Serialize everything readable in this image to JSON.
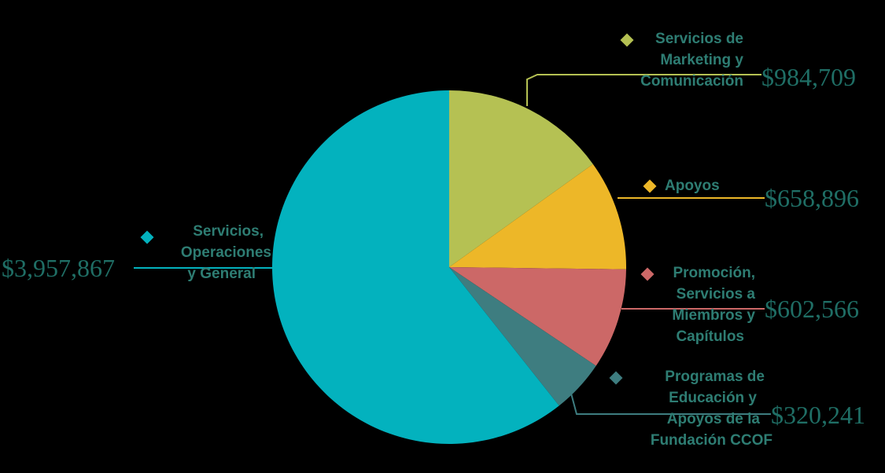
{
  "chart_data": {
    "type": "pie",
    "start_angle_deg": 0,
    "direction": "clockwise",
    "slices": [
      {
        "label_lines": [
          "Servicios de",
          "Marketing y",
          "Comunicación"
        ],
        "value": 984709,
        "value_label": "$984,709",
        "color": "#b5c153"
      },
      {
        "label_lines": [
          "Apoyos"
        ],
        "value": 658896,
        "value_label": "$658,896",
        "color": "#edb728"
      },
      {
        "label_lines": [
          "Promoción,",
          "Servicios a",
          "Miembros y",
          "Capítulos"
        ],
        "value": 602566,
        "value_label": "$602,566",
        "color": "#cc6867"
      },
      {
        "label_lines": [
          "Programas de",
          "Educación y",
          "Apoyos de la",
          "Fundación CCOF"
        ],
        "value": 320241,
        "value_label": "$320,241",
        "color": "#3e7d80"
      },
      {
        "label_lines": [
          "Servicios,",
          "Operaciones",
          "y General"
        ],
        "value": 3957867,
        "value_label": "$3,957,867",
        "color": "#03b2be"
      }
    ]
  }
}
